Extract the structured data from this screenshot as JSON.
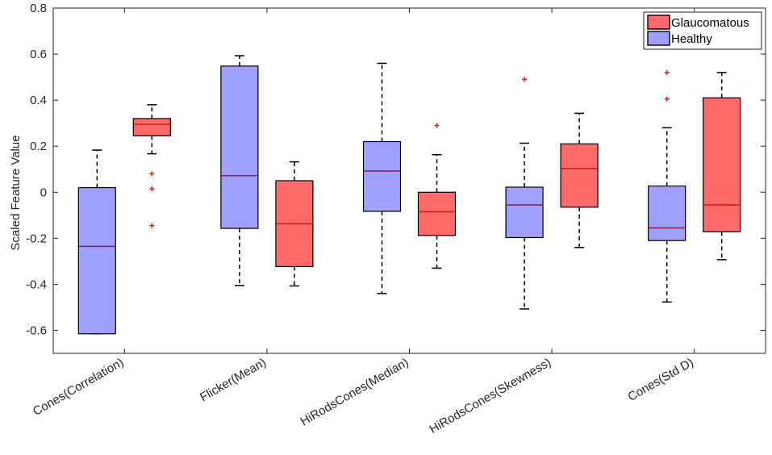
{
  "chart_data": {
    "type": "boxplot",
    "title": "",
    "xlabel": "",
    "ylabel": "Scaled Feature Value",
    "ylim": [
      -0.7,
      0.8
    ],
    "yticks": [
      -0.6,
      -0.4,
      -0.2,
      0,
      0.2,
      0.4,
      0.6,
      0.8
    ],
    "ytick_labels": [
      "-0.6",
      "-0.4",
      "-0.2",
      "0",
      "0.2",
      "0.4",
      "0.6",
      "0.8"
    ],
    "categories": [
      "Cones(Correlation)",
      "Flicker(Mean)",
      "HiRodsCones(Median)",
      "HiRodsCones(Skewness)",
      "Cones(Std D)"
    ],
    "legend_position": "top-right",
    "series": [
      {
        "name": "Healthy",
        "color": "#A0A0FF",
        "median_color": "#8B1A4A",
        "boxes": [
          {
            "whisker_low": -0.615,
            "q1": -0.615,
            "median": -0.235,
            "q3": 0.02,
            "whisker_high": 0.183,
            "outliers": []
          },
          {
            "whisker_low": -0.405,
            "q1": -0.157,
            "median": 0.072,
            "q3": 0.548,
            "whisker_high": 0.593,
            "outliers": []
          },
          {
            "whisker_low": -0.44,
            "q1": -0.083,
            "median": 0.092,
            "q3": 0.22,
            "whisker_high": 0.56,
            "outliers": []
          },
          {
            "whisker_low": -0.507,
            "q1": -0.197,
            "median": -0.055,
            "q3": 0.022,
            "whisker_high": 0.213,
            "outliers": [
              0.49
            ]
          },
          {
            "whisker_low": -0.477,
            "q1": -0.21,
            "median": -0.155,
            "q3": 0.027,
            "whisker_high": 0.28,
            "outliers": [
              0.405,
              0.52
            ]
          }
        ]
      },
      {
        "name": "Glaucomatous",
        "color": "#FF6B6B",
        "median_color": "#D01818",
        "boxes": [
          {
            "whisker_low": 0.167,
            "q1": 0.245,
            "median": 0.295,
            "q3": 0.32,
            "whisker_high": 0.38,
            "outliers": [
              0.08,
              0.015,
              -0.145
            ]
          },
          {
            "whisker_low": -0.407,
            "q1": -0.323,
            "median": -0.137,
            "q3": 0.05,
            "whisker_high": 0.132,
            "outliers": []
          },
          {
            "whisker_low": -0.33,
            "q1": -0.188,
            "median": -0.085,
            "q3": 0.0,
            "whisker_high": 0.163,
            "outliers": [
              0.29
            ]
          },
          {
            "whisker_low": -0.24,
            "q1": -0.065,
            "median": 0.103,
            "q3": 0.21,
            "whisker_high": 0.343,
            "outliers": []
          },
          {
            "whisker_low": -0.293,
            "q1": -0.172,
            "median": -0.055,
            "q3": 0.41,
            "whisker_high": 0.52,
            "outliers": []
          }
        ]
      }
    ]
  }
}
